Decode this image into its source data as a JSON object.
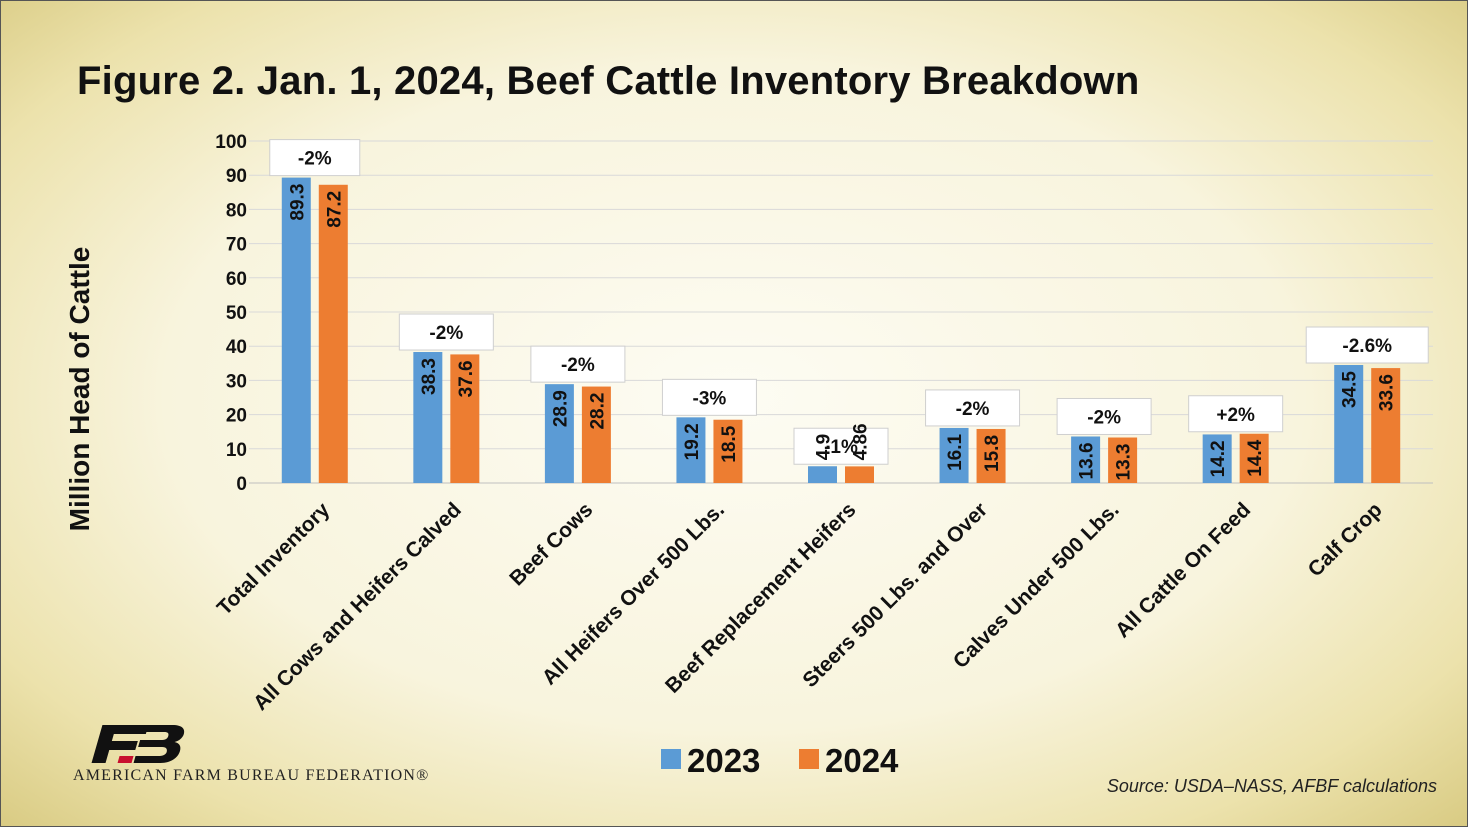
{
  "title": "Figure 2. Jan. 1, 2024, Beef Cattle Inventory Breakdown",
  "source": "Source: USDA–NASS, AFBF calculations",
  "logo": {
    "org_name": "AMERICAN FARM BUREAU FEDERATION®"
  },
  "colors": {
    "series_2023": "#5B9BD5",
    "series_2024": "#ED7D31",
    "grid": "#d9d9d9",
    "label_box": "#ffffff"
  },
  "chart_data": {
    "type": "bar",
    "title": "Figure 2. Jan. 1, 2024, Beef Cattle Inventory Breakdown",
    "ylabel": "Million Head of Cattle",
    "xlabel": "",
    "ylim": [
      0,
      100
    ],
    "yticks": [
      "0",
      "10",
      "20",
      "30",
      "40",
      "50",
      "60",
      "70",
      "80",
      "90",
      "100"
    ],
    "grid": true,
    "legend": "bottom-center",
    "categories": [
      "Total Inventory",
      "All Cows and Heifers Calved",
      "Beef Cows",
      "All Heifers Over 500 Lbs.",
      "Beef Replacement Heifers",
      "Steers 500 Lbs. and Over",
      "Calves Under 500 Lbs.",
      "All Cattle On Feed",
      "Calf Crop"
    ],
    "series": [
      {
        "name": "2023",
        "values": [
          89.3,
          38.3,
          28.9,
          19.2,
          4.9,
          16.1,
          13.6,
          14.2,
          34.5
        ],
        "labels": [
          "89.3",
          "38.3",
          "28.9",
          "19.2",
          "4.9",
          "16.1",
          "13.6",
          "14.2",
          "34.5"
        ]
      },
      {
        "name": "2024",
        "values": [
          87.2,
          37.6,
          28.2,
          18.5,
          4.86,
          15.8,
          13.3,
          14.4,
          33.6
        ],
        "labels": [
          "87.2",
          "37.6",
          "28.2",
          "18.5",
          "4.86",
          "15.8",
          "13.3",
          "14.4",
          "33.6"
        ]
      }
    ],
    "annotations": [
      "-2%",
      "-2%",
      "-2%",
      "-3%",
      "-1%",
      "-2%",
      "-2%",
      "+2%",
      "-2.6%"
    ]
  }
}
